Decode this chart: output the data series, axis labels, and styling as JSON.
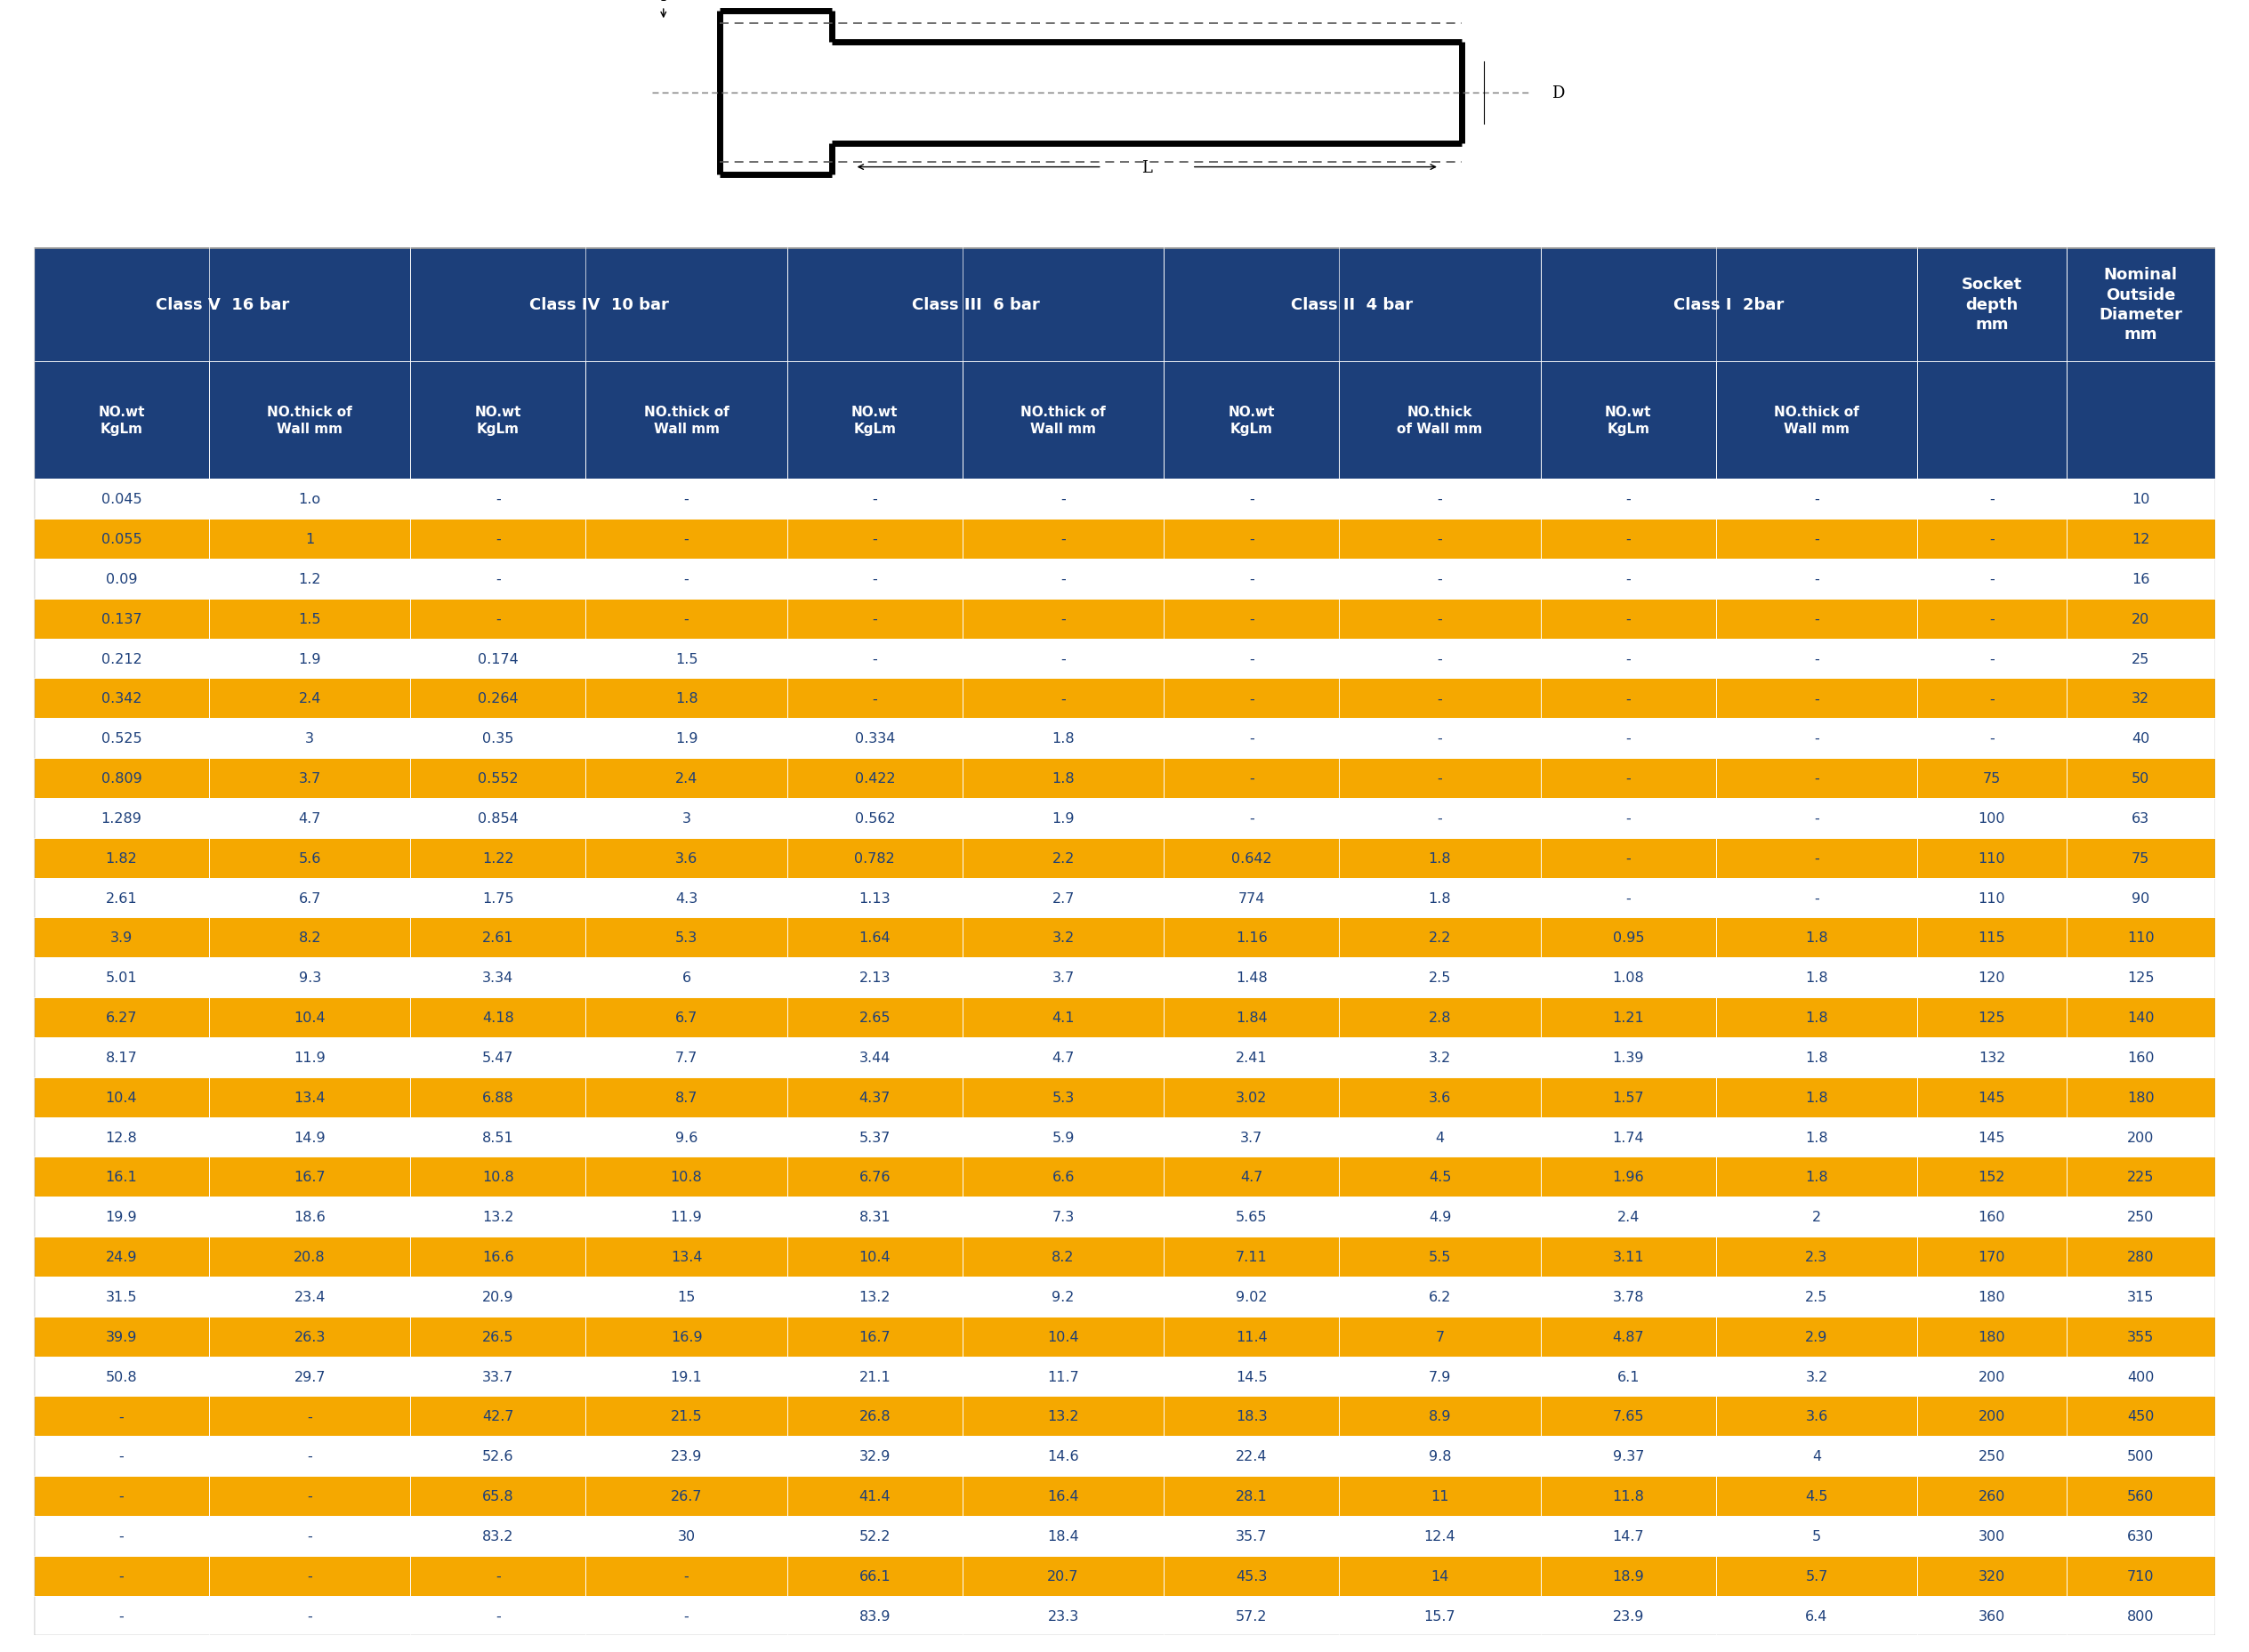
{
  "header_bg": "#1C3F7A",
  "header_text": "#FFFFFF",
  "row_odd_bg": "#FFFFFF",
  "row_even_bg": "#F5A800",
  "row_text": "#1C3F7A",
  "span_groups": [
    [
      "Class V  16 bar",
      0,
      1
    ],
    [
      "Class IV  10 bar",
      2,
      3
    ],
    [
      "Class III  6 bar",
      4,
      5
    ],
    [
      "Class II  4 bar",
      6,
      7
    ],
    [
      "Class I  2bar",
      8,
      9
    ],
    [
      "Socket\ndepth\nmm",
      10,
      10
    ],
    [
      "Nominal\nOutside\nDiameter\nmm",
      11,
      11
    ]
  ],
  "sub_headers": [
    "NO.wt\nKgLm",
    "NO.thick of\nWall mm",
    "NO.wt\nKgLm",
    "NO.thick of\nWall mm",
    "NO.wt\nKgLm",
    "NO.thick of\nWall mm",
    "NO.wt\nKgLm",
    "NO.thick\nof Wall mm",
    "NO.wt\nKgLm",
    "NO.thick of\nWall mm",
    "",
    ""
  ],
  "col_widths": [
    1.0,
    1.15,
    1.0,
    1.15,
    1.0,
    1.15,
    1.0,
    1.15,
    1.0,
    1.15,
    0.85,
    0.85
  ],
  "rows": [
    [
      "0.045",
      "1.o",
      "-",
      "-",
      "-",
      "-",
      "-",
      "-",
      "-",
      "-",
      "-",
      "10"
    ],
    [
      "0.055",
      "1",
      "-",
      "-",
      "-",
      "-",
      "-",
      "-",
      "-",
      "-",
      "-",
      "12"
    ],
    [
      "0.09",
      "1.2",
      "-",
      "-",
      "-",
      "-",
      "-",
      "-",
      "-",
      "-",
      "-",
      "16"
    ],
    [
      "0.137",
      "1.5",
      "-",
      "-",
      "-",
      "-",
      "-",
      "-",
      "-",
      "-",
      "-",
      "20"
    ],
    [
      "0.212",
      "1.9",
      "0.174",
      "1.5",
      "-",
      "-",
      "-",
      "-",
      "-",
      "-",
      "-",
      "25"
    ],
    [
      "0.342",
      "2.4",
      "0.264",
      "1.8",
      "-",
      "-",
      "-",
      "-",
      "-",
      "-",
      "-",
      "32"
    ],
    [
      "0.525",
      "3",
      "0.35",
      "1.9",
      "0.334",
      "1.8",
      "-",
      "-",
      "-",
      "-",
      "-",
      "40"
    ],
    [
      "0.809",
      "3.7",
      "0.552",
      "2.4",
      "0.422",
      "1.8",
      "-",
      "-",
      "-",
      "-",
      "75",
      "50"
    ],
    [
      "1.289",
      "4.7",
      "0.854",
      "3",
      "0.562",
      "1.9",
      "-",
      "-",
      "-",
      "-",
      "100",
      "63"
    ],
    [
      "1.82",
      "5.6",
      "1.22",
      "3.6",
      "0.782",
      "2.2",
      "0.642",
      "1.8",
      "-",
      "-",
      "110",
      "75"
    ],
    [
      "2.61",
      "6.7",
      "1.75",
      "4.3",
      "1.13",
      "2.7",
      "774",
      "1.8",
      "-",
      "-",
      "110",
      "90"
    ],
    [
      "3.9",
      "8.2",
      "2.61",
      "5.3",
      "1.64",
      "3.2",
      "1.16",
      "2.2",
      "0.95",
      "1.8",
      "115",
      "110"
    ],
    [
      "5.01",
      "9.3",
      "3.34",
      "6",
      "2.13",
      "3.7",
      "1.48",
      "2.5",
      "1.08",
      "1.8",
      "120",
      "125"
    ],
    [
      "6.27",
      "10.4",
      "4.18",
      "6.7",
      "2.65",
      "4.1",
      "1.84",
      "2.8",
      "1.21",
      "1.8",
      "125",
      "140"
    ],
    [
      "8.17",
      "11.9",
      "5.47",
      "7.7",
      "3.44",
      "4.7",
      "2.41",
      "3.2",
      "1.39",
      "1.8",
      "132",
      "160"
    ],
    [
      "10.4",
      "13.4",
      "6.88",
      "8.7",
      "4.37",
      "5.3",
      "3.02",
      "3.6",
      "1.57",
      "1.8",
      "145",
      "180"
    ],
    [
      "12.8",
      "14.9",
      "8.51",
      "9.6",
      "5.37",
      "5.9",
      "3.7",
      "4",
      "1.74",
      "1.8",
      "145",
      "200"
    ],
    [
      "16.1",
      "16.7",
      "10.8",
      "10.8",
      "6.76",
      "6.6",
      "4.7",
      "4.5",
      "1.96",
      "1.8",
      "152",
      "225"
    ],
    [
      "19.9",
      "18.6",
      "13.2",
      "11.9",
      "8.31",
      "7.3",
      "5.65",
      "4.9",
      "2.4",
      "2",
      "160",
      "250"
    ],
    [
      "24.9",
      "20.8",
      "16.6",
      "13.4",
      "10.4",
      "8.2",
      "7.11",
      "5.5",
      "3.11",
      "2.3",
      "170",
      "280"
    ],
    [
      "31.5",
      "23.4",
      "20.9",
      "15",
      "13.2",
      "9.2",
      "9.02",
      "6.2",
      "3.78",
      "2.5",
      "180",
      "315"
    ],
    [
      "39.9",
      "26.3",
      "26.5",
      "16.9",
      "16.7",
      "10.4",
      "11.4",
      "7",
      "4.87",
      "2.9",
      "180",
      "355"
    ],
    [
      "50.8",
      "29.7",
      "33.7",
      "19.1",
      "21.1",
      "11.7",
      "14.5",
      "7.9",
      "6.1",
      "3.2",
      "200",
      "400"
    ],
    [
      "-",
      "-",
      "42.7",
      "21.5",
      "26.8",
      "13.2",
      "18.3",
      "8.9",
      "7.65",
      "3.6",
      "200",
      "450"
    ],
    [
      "-",
      "-",
      "52.6",
      "23.9",
      "32.9",
      "14.6",
      "22.4",
      "9.8",
      "9.37",
      "4",
      "250",
      "500"
    ],
    [
      "-",
      "-",
      "65.8",
      "26.7",
      "41.4",
      "16.4",
      "28.1",
      "11",
      "11.8",
      "4.5",
      "260",
      "560"
    ],
    [
      "-",
      "-",
      "83.2",
      "30",
      "52.2",
      "18.4",
      "35.7",
      "12.4",
      "14.7",
      "5",
      "300",
      "630"
    ],
    [
      "-",
      "-",
      "-",
      "-",
      "66.1",
      "20.7",
      "45.3",
      "14",
      "18.9",
      "5.7",
      "320",
      "710"
    ],
    [
      "-",
      "-",
      "-",
      "-",
      "83.9",
      "23.3",
      "57.2",
      "15.7",
      "23.9",
      "6.4",
      "360",
      "800"
    ]
  ]
}
